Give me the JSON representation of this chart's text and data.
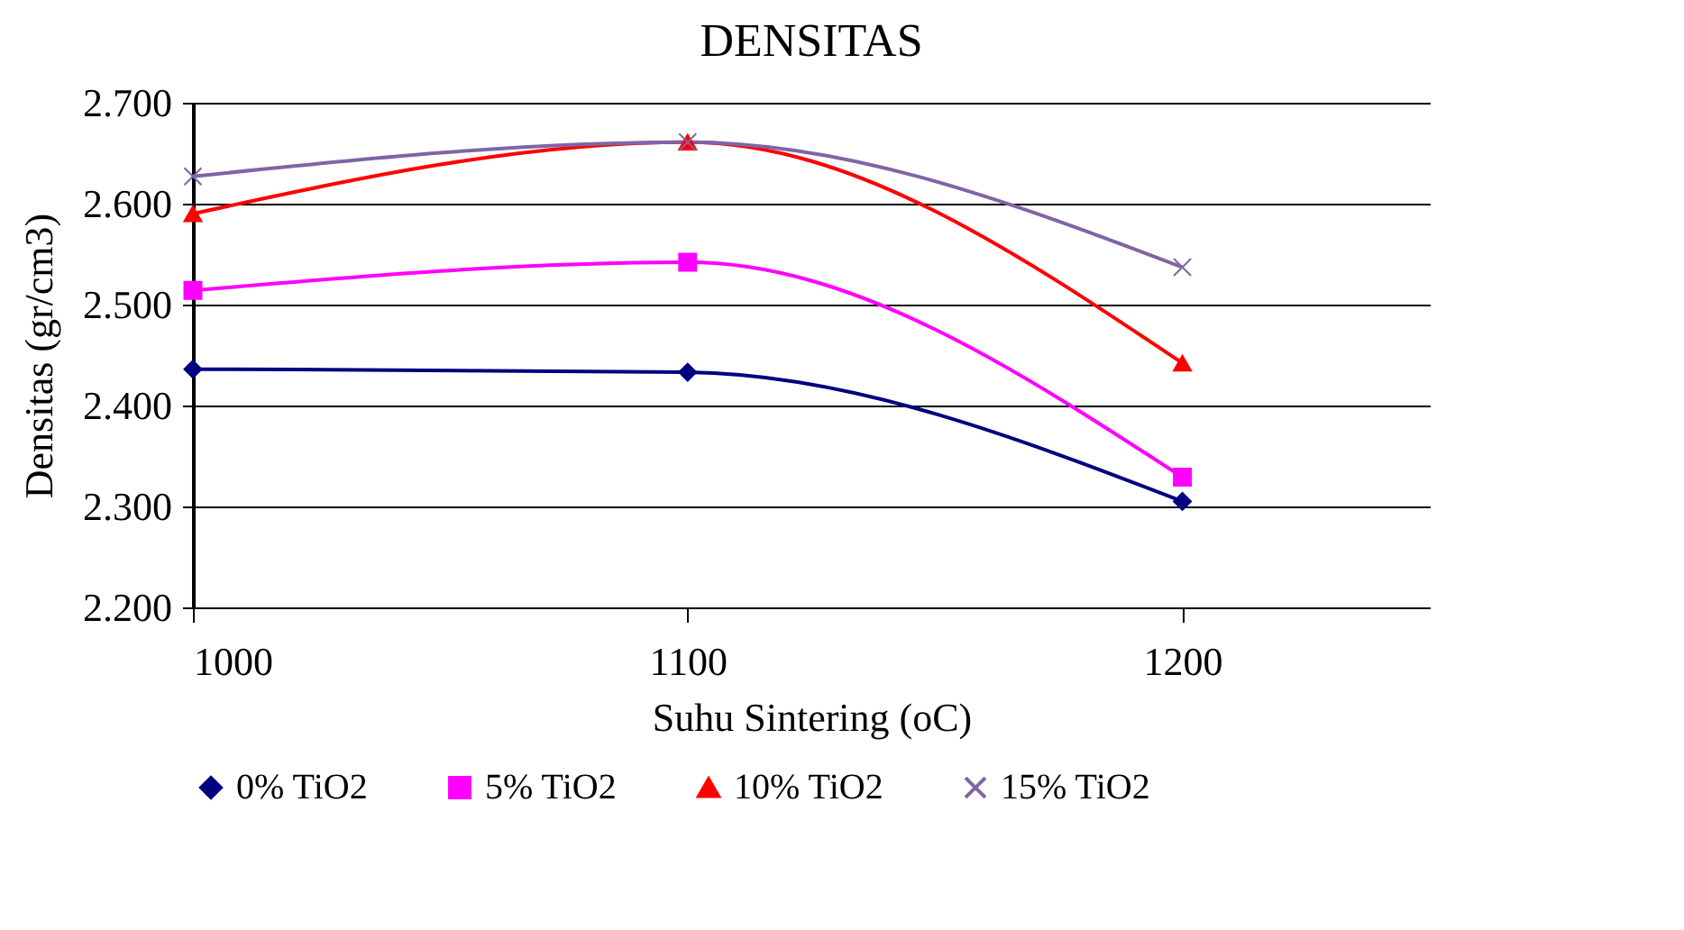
{
  "chart_data": {
    "type": "line",
    "title": "DENSITAS",
    "xlabel": "Suhu Sintering (oC)",
    "ylabel": "Densitas (gr/cm3)",
    "x": [
      1000,
      1100,
      1200
    ],
    "series": [
      {
        "name": "0% TiO2",
        "color": "#000080",
        "marker": "diamond",
        "values": [
          2.436,
          2.433,
          2.305
        ]
      },
      {
        "name": "5% TiO2",
        "color": "#ff00ff",
        "marker": "square",
        "values": [
          2.514,
          2.542,
          2.329
        ]
      },
      {
        "name": "10% TiO2",
        "color": "#ff0000",
        "marker": "triangle",
        "values": [
          2.59,
          2.661,
          2.442
        ]
      },
      {
        "name": "15% TiO2",
        "color": "#7f65a5",
        "marker": "cross",
        "values": [
          2.627,
          2.661,
          2.537
        ]
      }
    ],
    "xlim": [
      1000,
      1250
    ],
    "xticks": [
      1000,
      1100,
      1200
    ],
    "ylim": [
      2.2,
      2.7
    ],
    "yticks": [
      {
        "value": 2.2,
        "label": "2.200"
      },
      {
        "value": 2.3,
        "label": "2.300"
      },
      {
        "value": 2.4,
        "label": "2.400"
      },
      {
        "value": 2.5,
        "label": "2.500"
      },
      {
        "value": 2.6,
        "label": "2.600"
      },
      {
        "value": 2.7,
        "label": "2.700"
      }
    ],
    "grid": "y",
    "legend": "bottom",
    "line_style": "solid"
  }
}
